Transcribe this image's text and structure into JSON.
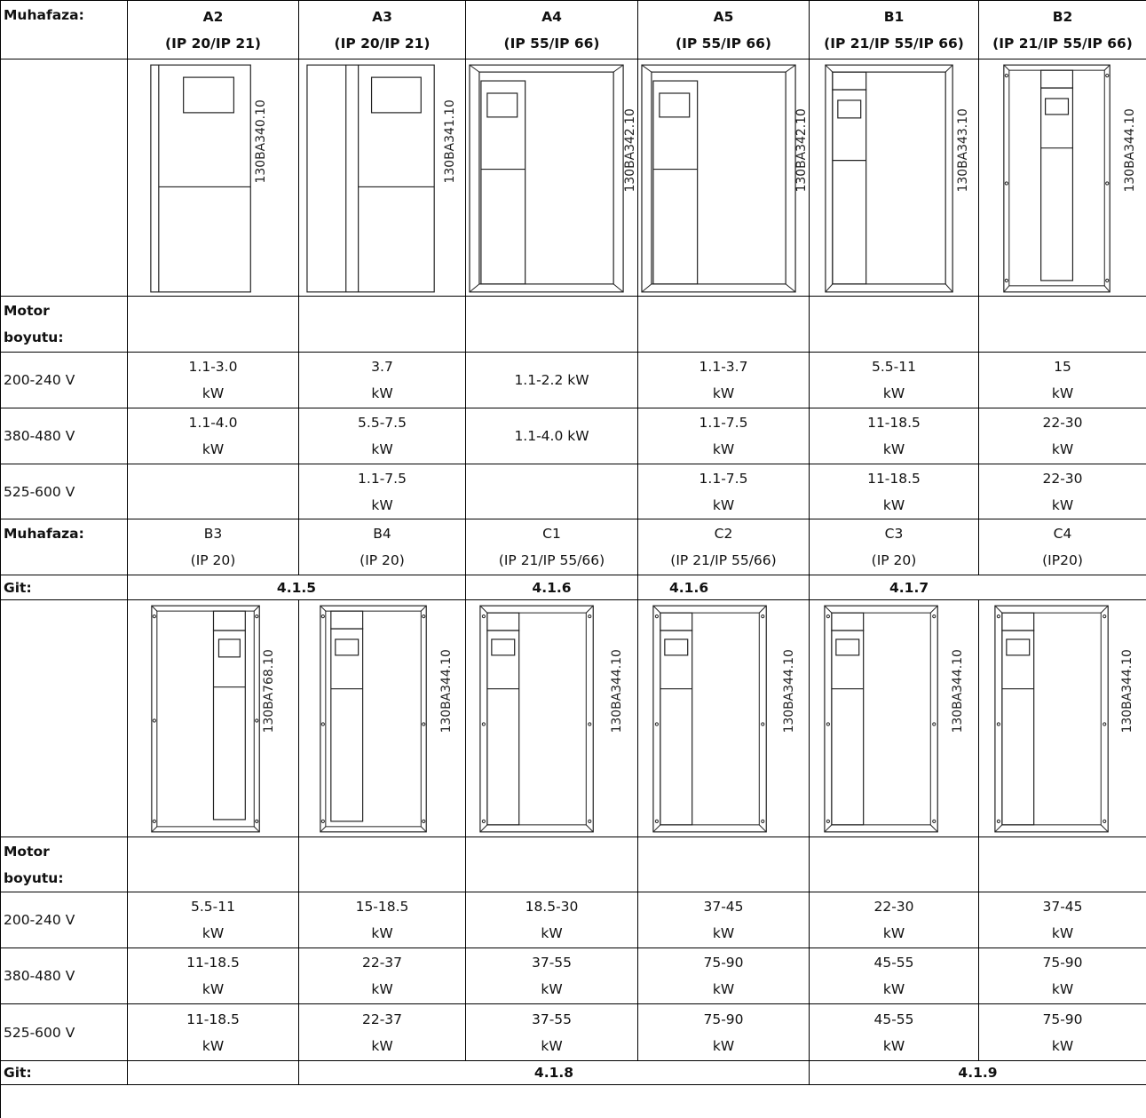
{
  "top": {
    "label": "Muhafaza:",
    "enclosures": [
      {
        "name": "A2",
        "ip": "(IP 20/IP 21)",
        "code": "130BA340.10"
      },
      {
        "name": "A3",
        "ip": "(IP 20/IP 21)",
        "code": "130BA341.10"
      },
      {
        "name": "A4",
        "ip": "(IP 55/IP 66)",
        "code": "130BA342.10"
      },
      {
        "name": "A5",
        "ip": "(IP 55/IP 66)",
        "code": "130BA342.10"
      },
      {
        "name": "B1",
        "ip": "(IP 21/IP 55/IP 66)",
        "code": "130BA343.10"
      },
      {
        "name": "B2",
        "ip": "(IP 21/IP 55/IP 66)",
        "code": "130BA344.10"
      }
    ],
    "motor_label_1": "Motor",
    "motor_label_2": "boyutu:",
    "rows": [
      {
        "voltage": "200-240 V",
        "values": [
          {
            "a": "1.1-3.0",
            "b": "kW"
          },
          {
            "a": "3.7",
            "b": "kW"
          },
          {
            "a": "1.1-2.2 kW",
            "b": ""
          },
          {
            "a": "1.1-3.7",
            "b": "kW"
          },
          {
            "a": "5.5-11",
            "b": "kW"
          },
          {
            "a": "15",
            "b": "kW"
          }
        ]
      },
      {
        "voltage": "380-480 V",
        "values": [
          {
            "a": "1.1-4.0",
            "b": "kW"
          },
          {
            "a": "5.5-7.5",
            "b": "kW"
          },
          {
            "a": "1.1-4.0 kW",
            "b": ""
          },
          {
            "a": "1.1-7.5",
            "b": "kW"
          },
          {
            "a": "11-18.5",
            "b": "kW"
          },
          {
            "a": "22-30",
            "b": "kW"
          }
        ]
      },
      {
        "voltage": "525-600 V",
        "values": [
          {
            "a": "",
            "b": ""
          },
          {
            "a": "1.1-7.5",
            "b": "kW"
          },
          {
            "a": "",
            "b": ""
          },
          {
            "a": "1.1-7.5",
            "b": "kW"
          },
          {
            "a": "11-18.5",
            "b": "kW"
          },
          {
            "a": "22-30",
            "b": "kW"
          }
        ]
      }
    ]
  },
  "bottom": {
    "label": "Muhafaza:",
    "enclosures": [
      {
        "name": "B3",
        "ip": "(IP 20)",
        "code": "130BA768.10"
      },
      {
        "name": "B4",
        "ip": "(IP 20)",
        "code": "130BA344.10"
      },
      {
        "name": "C1",
        "ip": "(IP 21/IP 55/66)",
        "code": "130BA344.10"
      },
      {
        "name": "C2",
        "ip": "(IP 21/IP 55/66)",
        "code": "130BA344.10"
      },
      {
        "name": "C3",
        "ip": "(IP 20)",
        "code": "130BA344.10"
      },
      {
        "name": "C4",
        "ip": "(IP20)",
        "code": "130BA344.10"
      }
    ],
    "git_label": "Git:",
    "git_refs": [
      "4.1.5",
      "4.1.6",
      "4.1.6",
      "4.1.7"
    ],
    "motor_label_1": "Motor",
    "motor_label_2": "boyutu:",
    "rows": [
      {
        "voltage": "200-240 V",
        "values": [
          {
            "a": "5.5-11",
            "b": "kW"
          },
          {
            "a": "15-18.5",
            "b": "kW"
          },
          {
            "a": "18.5-30",
            "b": "kW"
          },
          {
            "a": "37-45",
            "b": "kW"
          },
          {
            "a": "22-30",
            "b": "kW"
          },
          {
            "a": "37-45",
            "b": "kW"
          }
        ]
      },
      {
        "voltage": "380-480 V",
        "values": [
          {
            "a": "11-18.5",
            "b": "kW"
          },
          {
            "a": "22-37",
            "b": "kW"
          },
          {
            "a": "37-55",
            "b": "kW"
          },
          {
            "a": "75-90",
            "b": "kW"
          },
          {
            "a": "45-55",
            "b": "kW"
          },
          {
            "a": "75-90",
            "b": "kW"
          }
        ]
      },
      {
        "voltage": "525-600 V",
        "values": [
          {
            "a": "11-18.5",
            "b": "kW"
          },
          {
            "a": "22-37",
            "b": "kW"
          },
          {
            "a": "37-55",
            "b": "kW"
          },
          {
            "a": "75-90",
            "b": "kW"
          },
          {
            "a": "45-55",
            "b": "kW"
          },
          {
            "a": "75-90",
            "b": "kW"
          }
        ]
      }
    ],
    "git_label_2": "Git:",
    "git_refs_2": [
      "4.1.8",
      "4.1.9"
    ]
  }
}
